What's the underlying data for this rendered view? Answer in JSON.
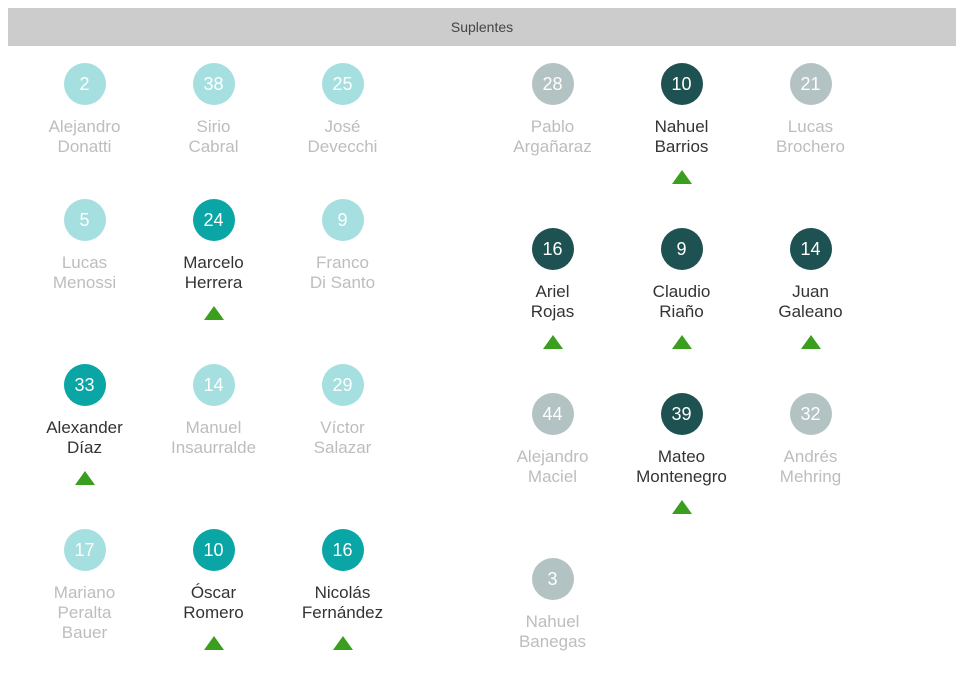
{
  "header": {
    "title": "Suplentes"
  },
  "colors": {
    "light": "#a6dfe0",
    "teal": "#0aa5a5",
    "dark": "#1e5151",
    "gray": "#b3c2c2",
    "arrow": "#3a9e1f"
  },
  "left": [
    {
      "number": "2",
      "name": "Alejandro\nDonatti",
      "style": "light",
      "active": false
    },
    {
      "number": "38",
      "name": "Sirio\nCabral",
      "style": "light",
      "active": false
    },
    {
      "number": "25",
      "name": "José\nDevecchi",
      "style": "light",
      "active": false
    },
    {
      "number": "5",
      "name": "Lucas\nMenossi",
      "style": "light",
      "active": false
    },
    {
      "number": "24",
      "name": "Marcelo\nHerrera",
      "style": "teal",
      "active": true
    },
    {
      "number": "9",
      "name": "Franco\nDi Santo",
      "style": "light",
      "active": false
    },
    {
      "number": "33",
      "name": "Alexander\nDíaz",
      "style": "teal",
      "active": true
    },
    {
      "number": "14",
      "name": "Manuel\nInsaurralde",
      "style": "light",
      "active": false
    },
    {
      "number": "29",
      "name": "Víctor\nSalazar",
      "style": "light",
      "active": false
    },
    {
      "number": "17",
      "name": "Mariano\nPeralta\nBauer",
      "style": "light",
      "active": false
    },
    {
      "number": "10",
      "name": "Óscar\nRomero",
      "style": "teal",
      "active": true
    },
    {
      "number": "16",
      "name": "Nicolás\nFernández",
      "style": "teal",
      "active": true
    }
  ],
  "right": [
    {
      "number": "28",
      "name": "Pablo\nArgañaraz",
      "style": "gray",
      "active": false
    },
    {
      "number": "10",
      "name": "Nahuel\nBarrios",
      "style": "dark",
      "active": true
    },
    {
      "number": "21",
      "name": "Lucas\nBrochero",
      "style": "gray",
      "active": false
    },
    {
      "number": "16",
      "name": "Ariel\nRojas",
      "style": "dark",
      "active": true
    },
    {
      "number": "9",
      "name": "Claudio\nRiaño",
      "style": "dark",
      "active": true
    },
    {
      "number": "14",
      "name": "Juan\nGaleano",
      "style": "dark",
      "active": true
    },
    {
      "number": "44",
      "name": "Alejandro\nMaciel",
      "style": "gray",
      "active": false
    },
    {
      "number": "39",
      "name": "Mateo\nMontenegro",
      "style": "dark",
      "active": true
    },
    {
      "number": "32",
      "name": "Andrés\nMehring",
      "style": "gray",
      "active": false
    },
    {
      "number": "3",
      "name": "Nahuel\nBanegas",
      "style": "gray",
      "active": false
    }
  ]
}
